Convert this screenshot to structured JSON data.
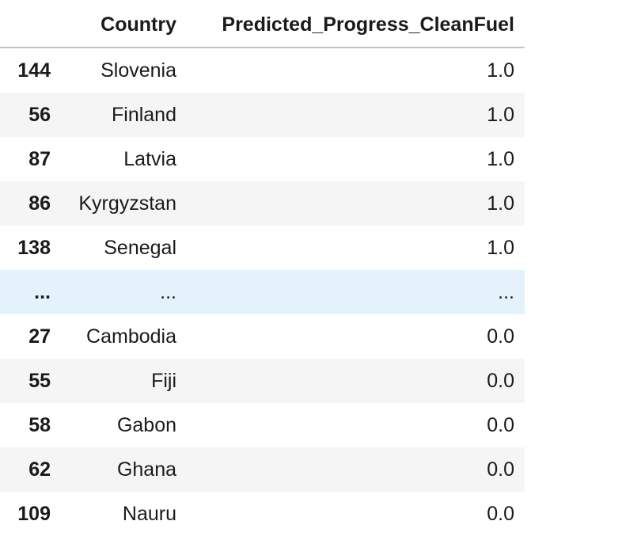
{
  "table": {
    "columns": {
      "index": "",
      "country": "Country",
      "predicted": "Predicted_Progress_CleanFuel"
    },
    "rows": [
      {
        "index": "144",
        "country": "Slovenia",
        "predicted": "1.0"
      },
      {
        "index": "56",
        "country": "Finland",
        "predicted": "1.0"
      },
      {
        "index": "87",
        "country": "Latvia",
        "predicted": "1.0"
      },
      {
        "index": "86",
        "country": "Kyrgyzstan",
        "predicted": "1.0"
      },
      {
        "index": "138",
        "country": "Senegal",
        "predicted": "1.0"
      },
      {
        "index": "...",
        "country": "...",
        "predicted": "..."
      },
      {
        "index": "27",
        "country": "Cambodia",
        "predicted": "0.0"
      },
      {
        "index": "55",
        "country": "Fiji",
        "predicted": "0.0"
      },
      {
        "index": "58",
        "country": "Gabon",
        "predicted": "0.0"
      },
      {
        "index": "62",
        "country": "Ghana",
        "predicted": "0.0"
      },
      {
        "index": "109",
        "country": "Nauru",
        "predicted": "0.0"
      }
    ]
  }
}
